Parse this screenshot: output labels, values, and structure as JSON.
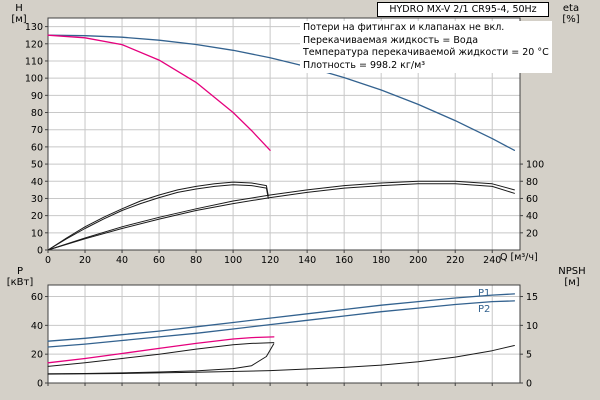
{
  "window": {
    "bg": "#d4d0c8"
  },
  "colors": {
    "blue": "#33628f",
    "magenta": "#e5007d",
    "black": "#1a1a1a",
    "grid": "#c8c8c8"
  },
  "title_box": "HYDRO MX-V 2/1 CR95-4, 50Hz",
  "info_lines": [
    "Потери на фитингах и клапанах не вкл.",
    "Перекачиваемая жидкость = Вода",
    "Температура перекачиваемой жидкости = 20 °C",
    "Плотность = 998.2 кг/м³"
  ],
  "axis_units": {
    "h": "H",
    "h_u": "[м]",
    "eta": "eta",
    "eta_u": "[%]",
    "p": "P",
    "p_u": "[кВт]",
    "npsh": "NPSH",
    "npsh_u": "[м]",
    "q": "Q [м³/ч]"
  },
  "curve_labels": {
    "p1": "P1",
    "p2": "P2"
  },
  "chart_data": [
    {
      "type": "line",
      "panel": "top",
      "title": "HYDRO MX-V 2/1 CR95-4, 50Hz",
      "xlabel": "Q [м³/ч]",
      "ylabel_left": "H [м]",
      "ylabel_right": "eta [%]",
      "xlim": [
        0,
        255
      ],
      "vlim": [
        0,
        135
      ],
      "x_ticks": [
        0,
        20,
        40,
        60,
        80,
        100,
        120,
        140,
        160,
        180,
        200,
        220,
        240
      ],
      "show_x_labels": true,
      "y_ticks_left": [
        0,
        10,
        20,
        30,
        40,
        50,
        60,
        70,
        80,
        90,
        100,
        110,
        120,
        130
      ],
      "grid_v": [
        10,
        20,
        30,
        40,
        50,
        60,
        70,
        80,
        90,
        100,
        110,
        120,
        130
      ],
      "y_ticks_right": [
        20,
        40,
        60,
        80,
        100
      ],
      "right_scale": 0.5,
      "grid": true,
      "legend": "none",
      "series": [
        {
          "name": "head-2-pumps",
          "axis": "left",
          "color": "#33628f",
          "width": 1.3,
          "x": [
            0,
            20,
            40,
            60,
            80,
            100,
            120,
            140,
            160,
            180,
            200,
            220,
            240,
            252
          ],
          "y": [
            125,
            124.7,
            123.8,
            122.1,
            119.6,
            116.2,
            111.9,
            106.6,
            100.3,
            93.1,
            84.7,
            75.3,
            64.8,
            58
          ]
        },
        {
          "name": "head-1-pump",
          "axis": "left",
          "color": "#e5007d",
          "width": 1.3,
          "x": [
            0,
            20,
            40,
            60,
            80,
            100,
            110,
            120
          ],
          "y": [
            125,
            123.5,
            119.5,
            110.5,
            97.5,
            80,
            69.5,
            58
          ]
        },
        {
          "name": "eta-2-pumps-a",
          "axis": "right",
          "color": "#1a1a1a",
          "width": 1,
          "x": [
            0,
            20,
            40,
            60,
            80,
            100,
            120,
            140,
            160,
            180,
            200,
            220,
            240,
            252
          ],
          "y": [
            0,
            14,
            27,
            38,
            48,
            57,
            64,
            70,
            75,
            78,
            80,
            80,
            77,
            70
          ]
        },
        {
          "name": "eta-2-pumps-b",
          "axis": "right",
          "color": "#1a1a1a",
          "width": 1,
          "x": [
            0,
            20,
            40,
            60,
            80,
            100,
            120,
            140,
            160,
            180,
            200,
            220,
            240,
            252
          ],
          "y": [
            0,
            13,
            25,
            36,
            46,
            54,
            61,
            67,
            72,
            75,
            77,
            77,
            74,
            66
          ]
        },
        {
          "name": "eta-1-pump-a",
          "axis": "right",
          "color": "#1a1a1a",
          "width": 1,
          "x": [
            0,
            10,
            20,
            30,
            40,
            50,
            60,
            70,
            80,
            90,
            100,
            110,
            118,
            119
          ],
          "y": [
            0,
            14,
            27,
            38,
            48,
            57,
            64,
            70,
            74,
            77,
            79,
            78,
            75,
            63
          ]
        },
        {
          "name": "eta-1-pump-b",
          "axis": "right",
          "color": "#1a1a1a",
          "width": 1,
          "x": [
            0,
            10,
            20,
            30,
            40,
            50,
            60,
            70,
            80,
            90,
            100,
            110,
            118,
            119
          ],
          "y": [
            0,
            13,
            25,
            36,
            46,
            54,
            61,
            67,
            71,
            74,
            76,
            75,
            72,
            60
          ]
        }
      ]
    },
    {
      "type": "line",
      "panel": "bottom",
      "title": "",
      "xlabel": "Q [м³/ч]",
      "ylabel_left": "P [кВт]",
      "ylabel_right": "NPSH [м]",
      "xlim": [
        0,
        255
      ],
      "vlim": [
        0,
        68
      ],
      "x_ticks": [
        0,
        20,
        40,
        60,
        80,
        100,
        120,
        140,
        160,
        180,
        200,
        220,
        240
      ],
      "show_x_labels": false,
      "y_ticks_left": [
        0,
        20,
        40,
        60
      ],
      "grid_v": [
        20,
        40,
        60
      ],
      "y_ticks_right": [
        0,
        5,
        10,
        15
      ],
      "right_scale": 4,
      "grid": true,
      "legend": "none",
      "series": [
        {
          "name": "p1-2-pumps",
          "axis": "left",
          "color": "#33628f",
          "width": 1.3,
          "x": [
            0,
            20,
            40,
            60,
            80,
            100,
            120,
            140,
            160,
            180,
            200,
            220,
            240,
            252
          ],
          "y": [
            29,
            31,
            33.5,
            36,
            39,
            42,
            45,
            48,
            51,
            54,
            56.5,
            59,
            61,
            61.8
          ]
        },
        {
          "name": "p2-2-pumps",
          "axis": "left",
          "color": "#33628f",
          "width": 1.3,
          "x": [
            0,
            20,
            40,
            60,
            80,
            100,
            120,
            140,
            160,
            180,
            200,
            220,
            240,
            252
          ],
          "y": [
            25,
            27,
            29.5,
            32,
            34.5,
            37.5,
            40.5,
            43.5,
            46.5,
            49.5,
            52,
            54.5,
            56.5,
            57
          ]
        },
        {
          "name": "p1-1-pump",
          "axis": "left",
          "color": "#e5007d",
          "width": 1.3,
          "x": [
            0,
            20,
            40,
            60,
            80,
            100,
            110,
            122
          ],
          "y": [
            14,
            17,
            20.5,
            24,
            27.5,
            30.5,
            31.5,
            32
          ]
        },
        {
          "name": "p2-1-pump",
          "axis": "left",
          "color": "#1a1a1a",
          "width": 1,
          "x": [
            0,
            20,
            40,
            60,
            80,
            100,
            110,
            122
          ],
          "y": [
            11.5,
            14,
            17,
            20,
            23.5,
            26.5,
            27.5,
            28
          ]
        },
        {
          "name": "npsh-1-pump",
          "axis": "right",
          "color": "#1a1a1a",
          "width": 1,
          "x": [
            0,
            20,
            40,
            60,
            80,
            100,
            110,
            118,
            122
          ],
          "y": [
            1.6,
            1.65,
            1.75,
            1.9,
            2.1,
            2.5,
            3.0,
            4.6,
            6.8
          ]
        },
        {
          "name": "npsh-2-pumps",
          "axis": "right",
          "color": "#1a1a1a",
          "width": 1,
          "x": [
            0,
            40,
            80,
            120,
            160,
            180,
            200,
            220,
            240,
            252
          ],
          "y": [
            1.55,
            1.65,
            1.85,
            2.15,
            2.7,
            3.1,
            3.7,
            4.5,
            5.6,
            6.5
          ]
        }
      ]
    }
  ]
}
